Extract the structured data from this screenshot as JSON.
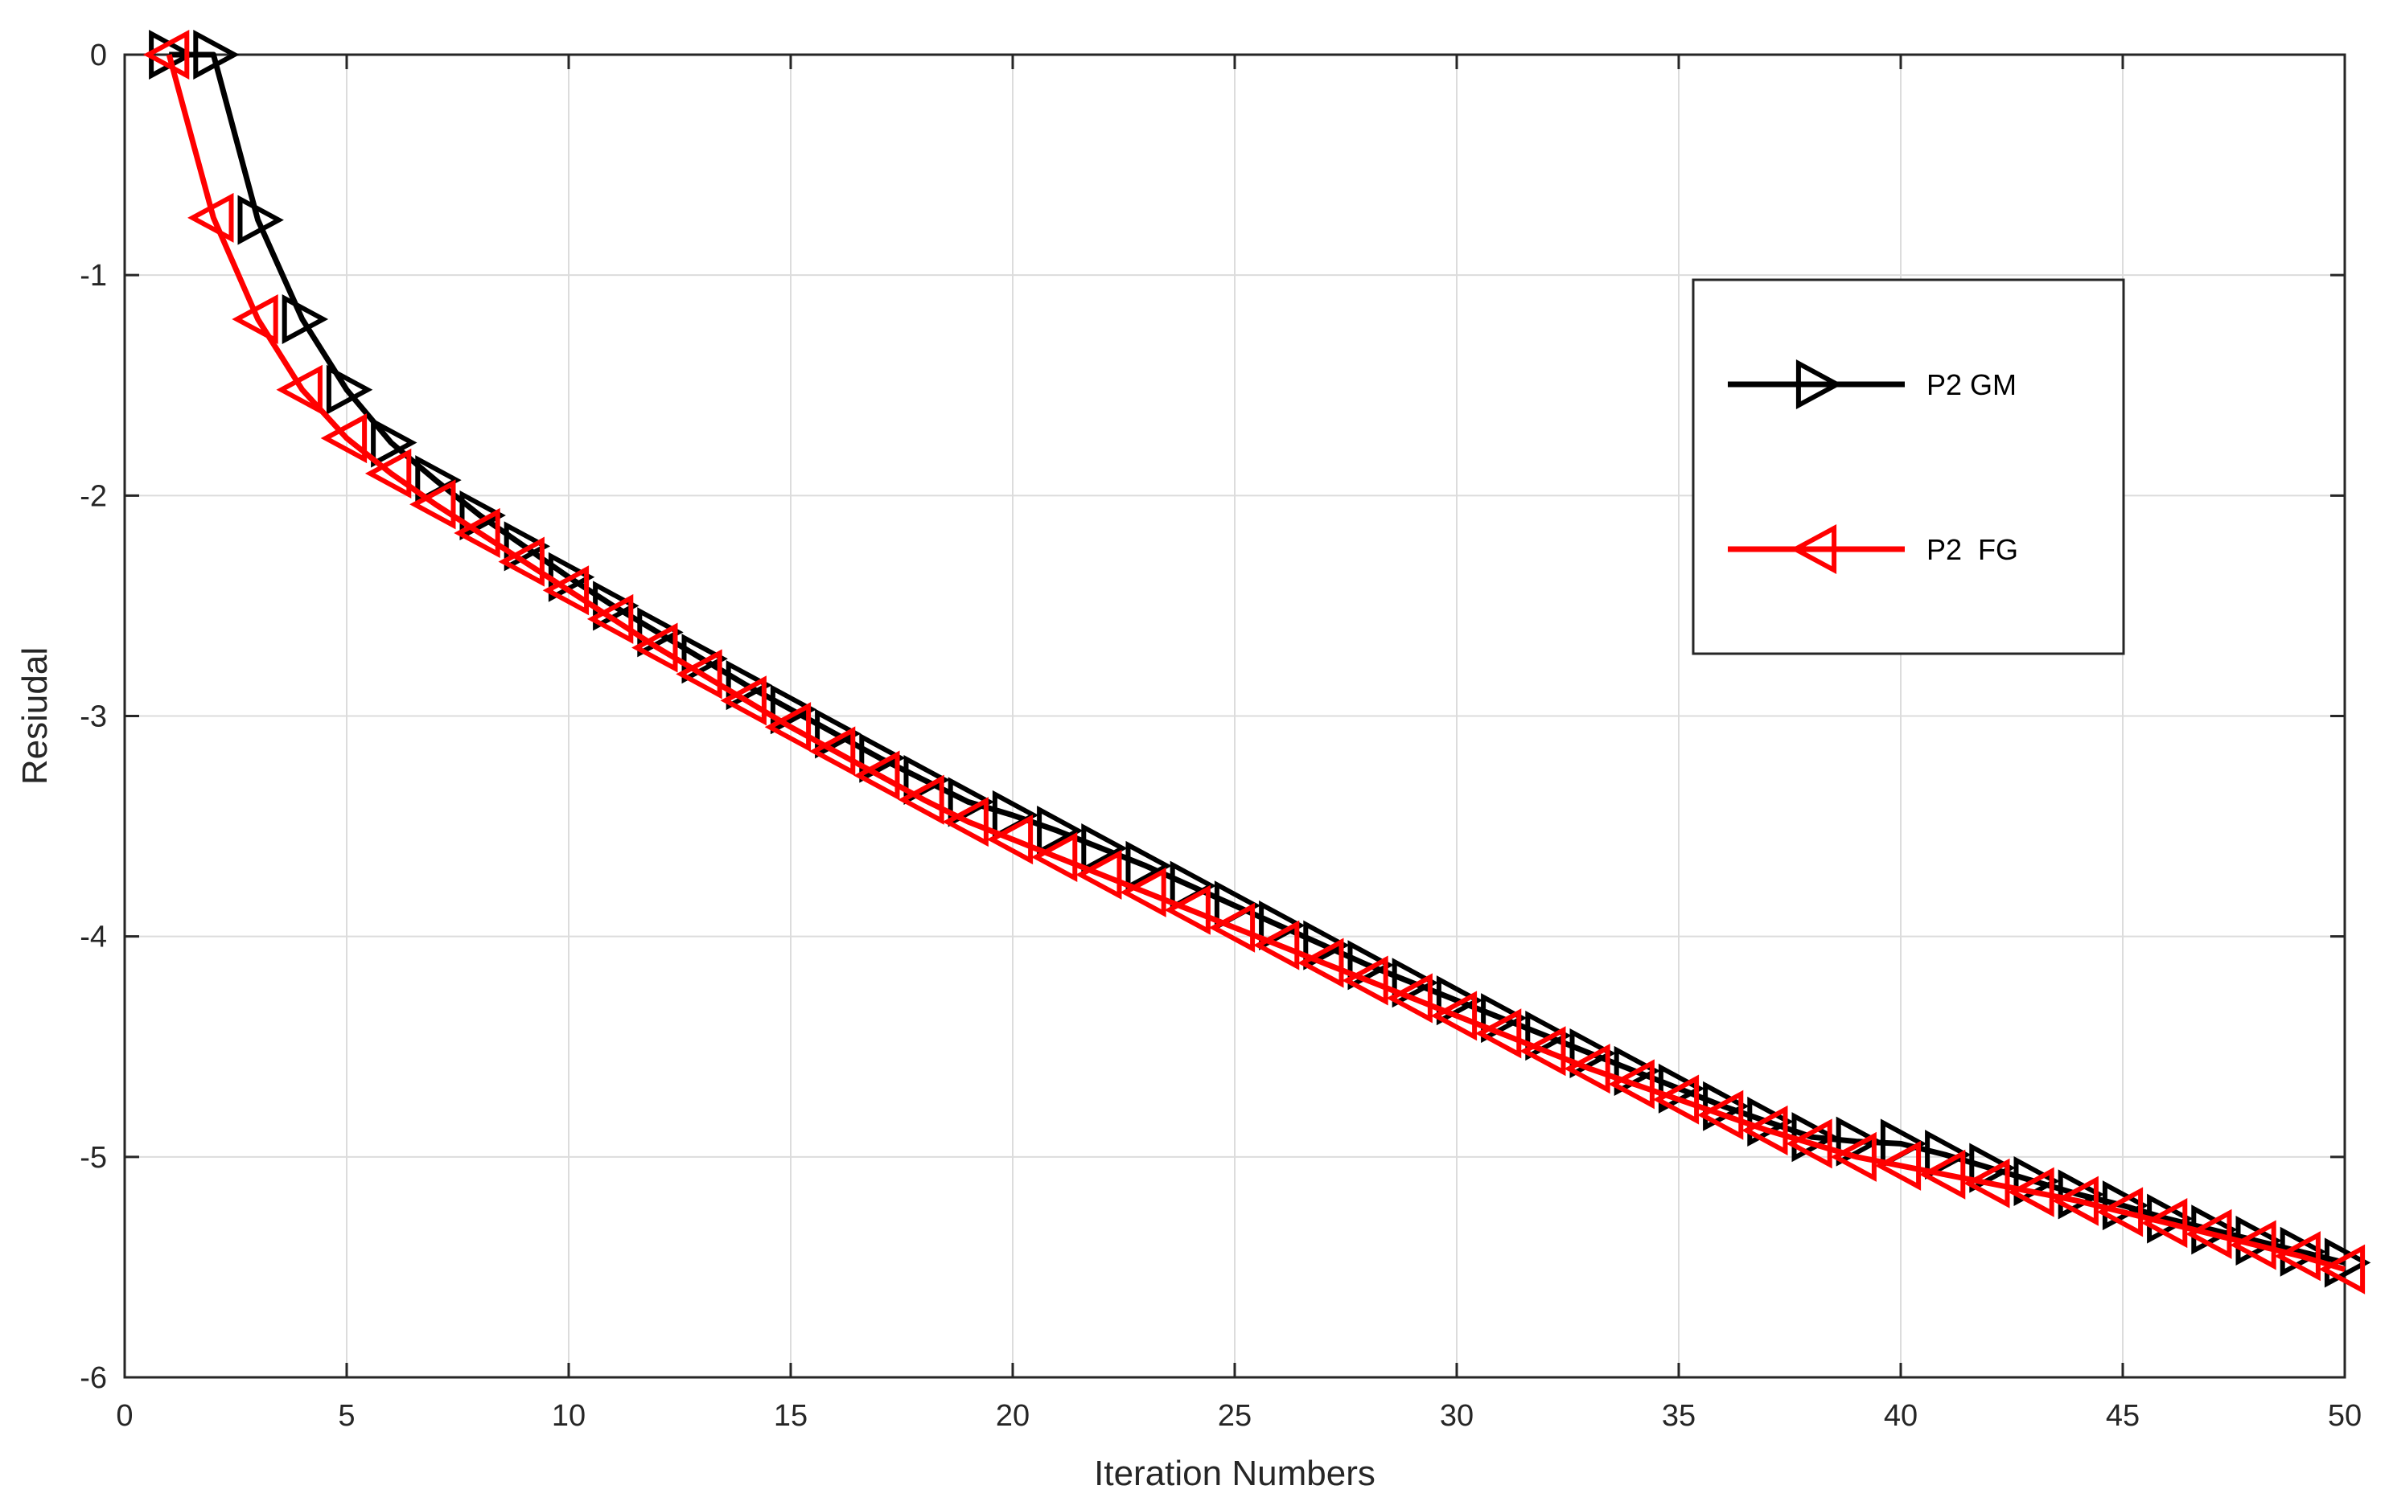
{
  "chart_data": {
    "type": "line",
    "title": "",
    "xlabel": "Iteration Numbers",
    "ylabel": "Resiudal",
    "xlim": [
      0,
      50
    ],
    "ylim": [
      -6,
      0
    ],
    "xticks": [
      0,
      5,
      10,
      15,
      20,
      25,
      30,
      35,
      40,
      45,
      50
    ],
    "yticks": [
      0,
      -1,
      -2,
      -3,
      -4,
      -5,
      -6
    ],
    "grid": true,
    "legend_position": "upper-right",
    "series": [
      {
        "name": "P2 GM",
        "color": "#000000",
        "marker": "triangle-right",
        "x": [
          1,
          2,
          3,
          4,
          5,
          6,
          7,
          8,
          9,
          10,
          11,
          12,
          13,
          14,
          15,
          16,
          17,
          18,
          19,
          20,
          21,
          22,
          23,
          24,
          25,
          26,
          27,
          28,
          29,
          30,
          31,
          32,
          33,
          34,
          35,
          36,
          37,
          38,
          39,
          40,
          41,
          42,
          43,
          44,
          45,
          46,
          47,
          48,
          49,
          50
        ],
        "y": [
          0,
          0,
          -0.75,
          -1.2,
          -1.52,
          -1.76,
          -1.93,
          -2.09,
          -2.23,
          -2.37,
          -2.5,
          -2.62,
          -2.74,
          -2.86,
          -2.97,
          -3.08,
          -3.19,
          -3.29,
          -3.39,
          -3.45,
          -3.52,
          -3.6,
          -3.68,
          -3.77,
          -3.86,
          -3.95,
          -4.04,
          -4.13,
          -4.21,
          -4.29,
          -4.37,
          -4.45,
          -4.53,
          -4.61,
          -4.69,
          -4.77,
          -4.84,
          -4.91,
          -4.93,
          -4.94,
          -4.99,
          -5.05,
          -5.11,
          -5.17,
          -5.22,
          -5.28,
          -5.33,
          -5.38,
          -5.43,
          -5.48
        ]
      },
      {
        "name": "P2  FG",
        "color": "#ff0000",
        "marker": "triangle-left",
        "x": [
          1,
          2,
          3,
          4,
          5,
          6,
          7,
          8,
          9,
          10,
          11,
          12,
          13,
          14,
          15,
          16,
          17,
          18,
          19,
          20,
          21,
          22,
          23,
          24,
          25,
          26,
          27,
          28,
          29,
          30,
          31,
          32,
          33,
          34,
          35,
          36,
          37,
          38,
          39,
          40,
          41,
          42,
          43,
          44,
          45,
          46,
          47,
          48,
          49,
          50
        ],
        "y": [
          0,
          -0.74,
          -1.2,
          -1.52,
          -1.74,
          -1.9,
          -2.04,
          -2.17,
          -2.3,
          -2.43,
          -2.56,
          -2.69,
          -2.81,
          -2.93,
          -3.05,
          -3.16,
          -3.27,
          -3.38,
          -3.48,
          -3.56,
          -3.64,
          -3.72,
          -3.8,
          -3.88,
          -3.96,
          -4.04,
          -4.12,
          -4.2,
          -4.28,
          -4.36,
          -4.44,
          -4.52,
          -4.6,
          -4.67,
          -4.74,
          -4.81,
          -4.88,
          -4.94,
          -5,
          -5.04,
          -5.08,
          -5.12,
          -5.16,
          -5.2,
          -5.25,
          -5.3,
          -5.35,
          -5.4,
          -5.45,
          -5.51
        ]
      }
    ]
  }
}
